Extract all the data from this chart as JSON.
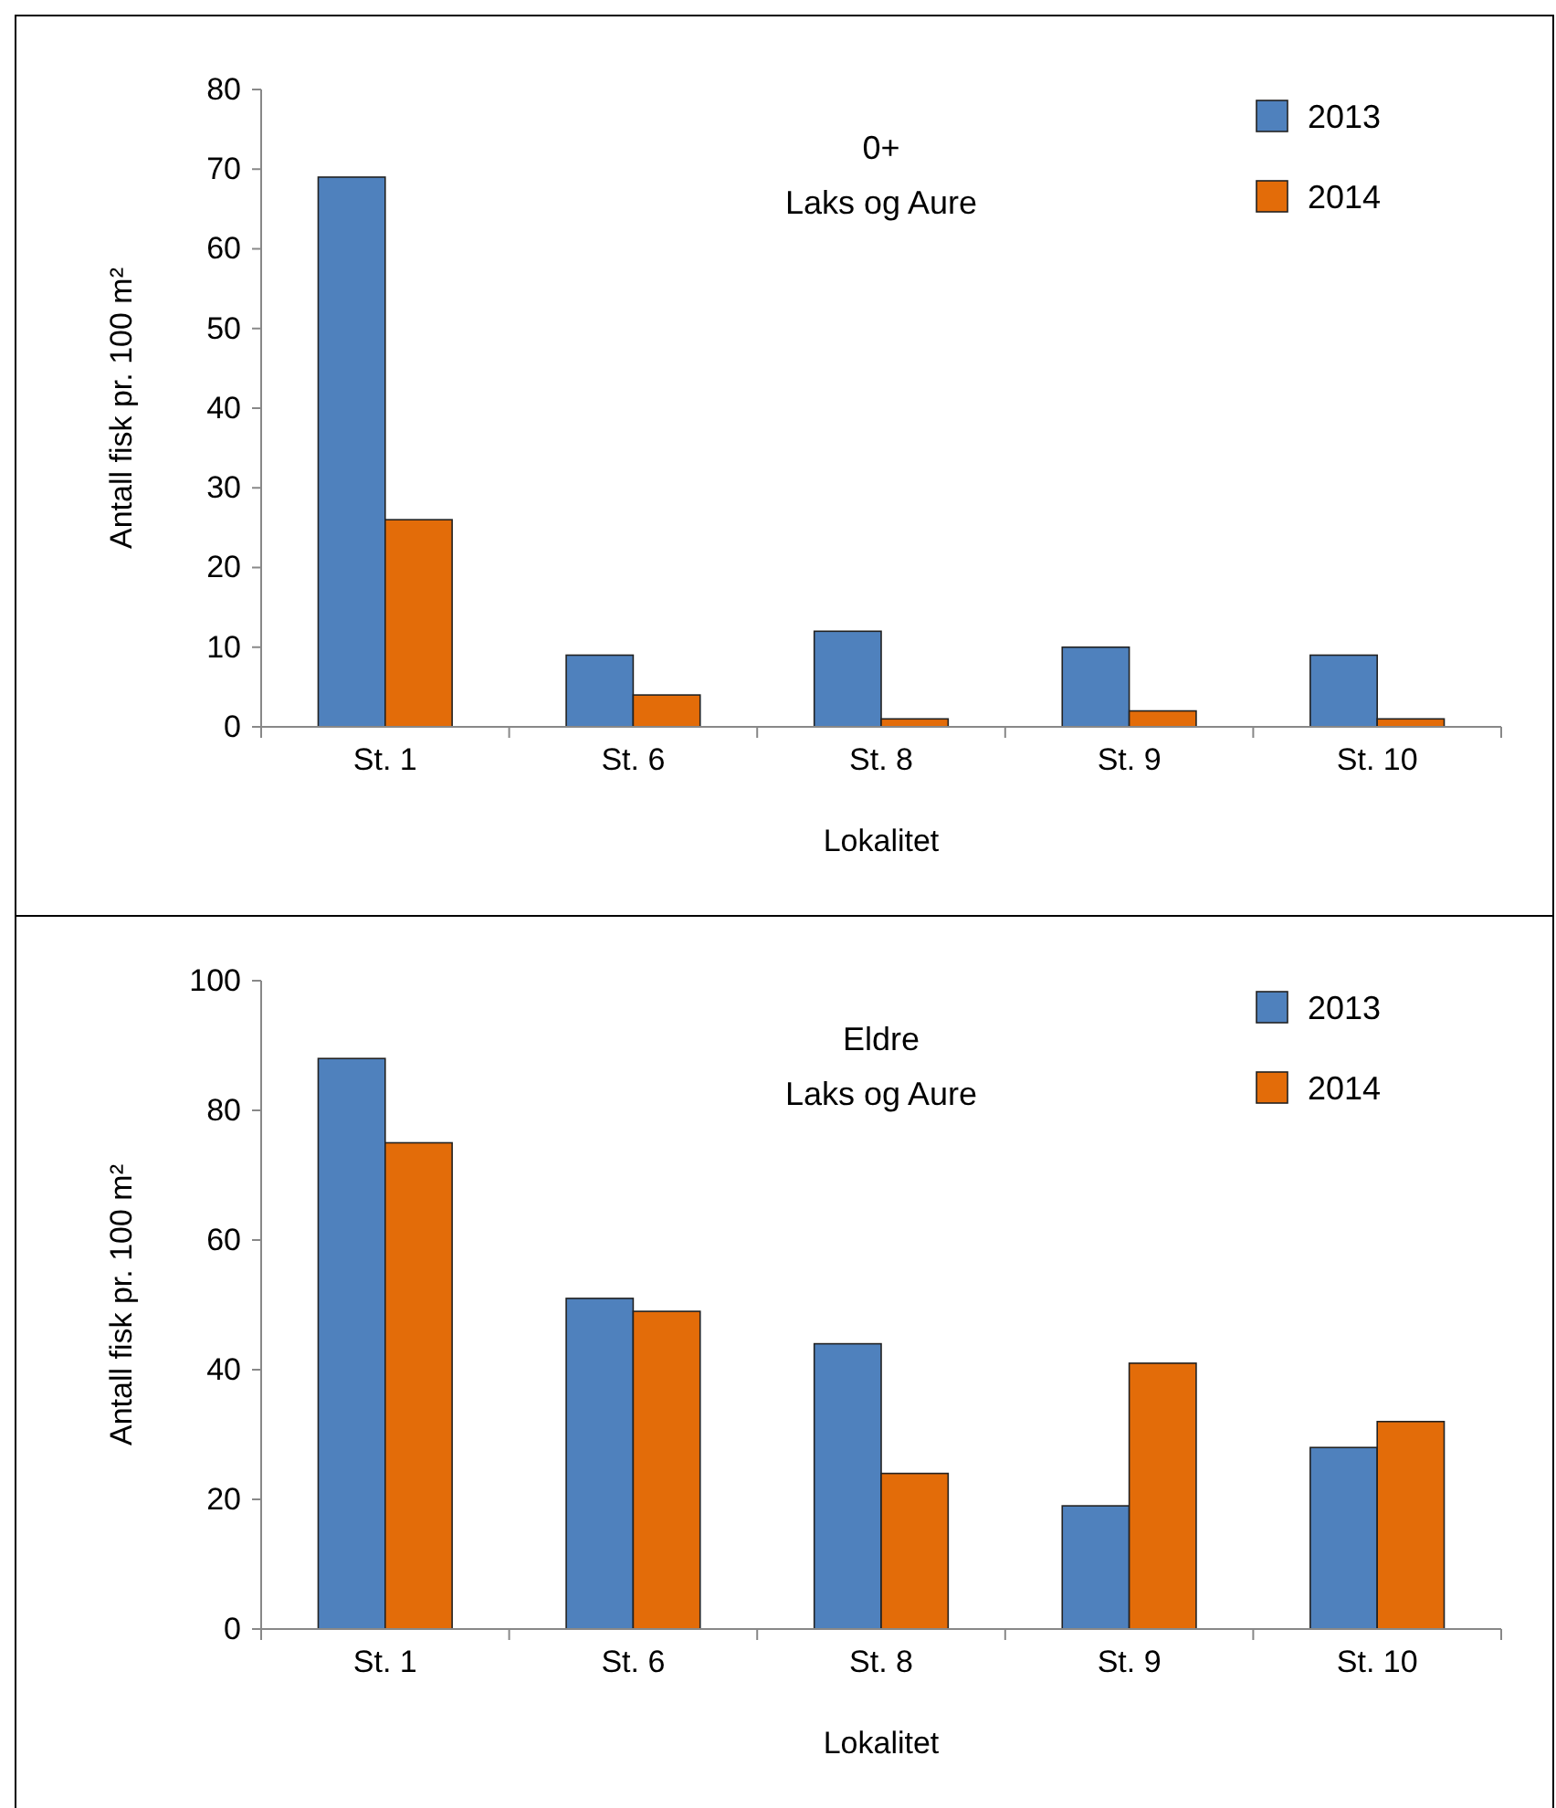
{
  "chart_data": [
    {
      "type": "bar",
      "title": "0+",
      "subtitle": "Laks og Aure",
      "xlabel": "Lokalitet",
      "ylabel": "Antall fisk pr. 100 m²",
      "categories": [
        "St. 1",
        "St. 6",
        "St. 8",
        "St. 9",
        "St. 10"
      ],
      "series": [
        {
          "name": "2013",
          "color": "#4f81bd",
          "values": [
            69,
            9,
            12,
            10,
            9
          ]
        },
        {
          "name": "2014",
          "color": "#e36c09",
          "values": [
            26,
            4,
            1,
            2,
            1
          ]
        }
      ],
      "ylim": [
        0,
        80
      ],
      "yticks": [
        0,
        10,
        20,
        30,
        40,
        50,
        60,
        70,
        80
      ],
      "grid": false,
      "legend": "top right"
    },
    {
      "type": "bar",
      "title": "Eldre",
      "subtitle": "Laks og Aure",
      "xlabel": "Lokalitet",
      "ylabel": "Antall fisk pr. 100 m²",
      "categories": [
        "St. 1",
        "St. 6",
        "St. 8",
        "St. 9",
        "St. 10"
      ],
      "series": [
        {
          "name": "2013",
          "color": "#4f81bd",
          "values": [
            88,
            51,
            44,
            19,
            28
          ]
        },
        {
          "name": "2014",
          "color": "#e36c09",
          "values": [
            75,
            49,
            24,
            41,
            32
          ]
        }
      ],
      "ylim": [
        0,
        100
      ],
      "yticks": [
        0,
        20,
        40,
        60,
        80,
        100
      ],
      "grid": false,
      "legend": "top right"
    }
  ]
}
